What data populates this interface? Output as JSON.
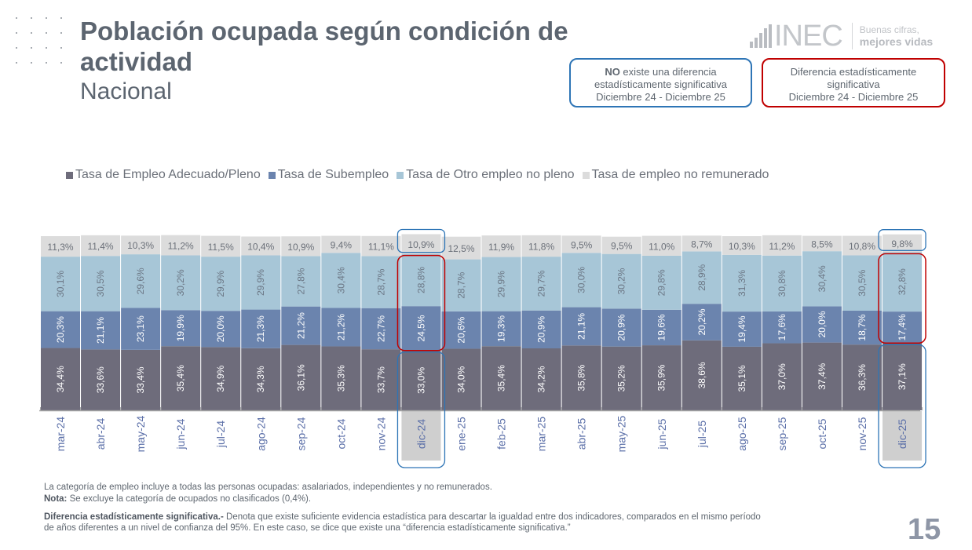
{
  "header": {
    "title": "Población ocupada según condición de actividad",
    "subtitle": "Nacional"
  },
  "logo": {
    "brand": "INEC",
    "slogan_line1": "Buenas cifras,",
    "slogan_line2": "mejores vidas"
  },
  "significance_boxes": {
    "no_difference": {
      "bold": "NO",
      "line1_rest": " existe una diferencia",
      "line2": "estadísticamente significativa",
      "line3": "Diciembre 24 - Diciembre 25",
      "color": "#2e75b6"
    },
    "difference": {
      "line1": "Diferencia estadísticamente",
      "line2": "significativa",
      "line3": "Diciembre 24 - Diciembre 25",
      "color": "#c00000"
    }
  },
  "chart_data": {
    "type": "bar",
    "stacked": true,
    "title": "Población ocupada según condición de actividad - Nacional",
    "xlabel": "",
    "ylabel": "",
    "ylim": [
      0,
      100
    ],
    "grid": false,
    "legend_position": "top",
    "categories": [
      "mar-24",
      "abr-24",
      "may-24",
      "jun-24",
      "jul-24",
      "ago-24",
      "sep-24",
      "oct-24",
      "nov-24",
      "dic-24",
      "ene-25",
      "feb-25",
      "mar-25",
      "abr-25",
      "may-25",
      "jun-25",
      "jul-25",
      "ago-25",
      "sep-25",
      "oct-25",
      "nov-25",
      "dic-25"
    ],
    "highlighted_categories": [
      "dic-24",
      "dic-25"
    ],
    "series": [
      {
        "name": "Tasa de Empleo Adecuado/Pleno",
        "color": "#6e6c7b",
        "label_color": "#ffffff",
        "values": [
          34.4,
          33.6,
          33.4,
          35.4,
          34.9,
          34.3,
          36.1,
          35.3,
          33.7,
          33.0,
          34.0,
          35.4,
          34.2,
          35.8,
          35.2,
          35.9,
          38.6,
          35.1,
          37.0,
          37.4,
          36.3,
          37.1
        ],
        "labels": [
          "34,4%",
          "33,6%",
          "33,4%",
          "35,4%",
          "34,9%",
          "34,3%",
          "36,1%",
          "35,3%",
          "33,7%",
          "33,0%",
          "34,0%",
          "35,4%",
          "34,2%",
          "35,8%",
          "35,2%",
          "35,9%",
          "38,6%",
          "35,1%",
          "37,0%",
          "37,4%",
          "36,3%",
          "37,1%"
        ],
        "significance": "no"
      },
      {
        "name": "Tasa de Subempleo",
        "color": "#6b84ae",
        "label_color": "#ffffff",
        "values": [
          20.3,
          21.1,
          23.1,
          19.9,
          20.0,
          21.3,
          21.2,
          21.2,
          22.7,
          24.5,
          20.6,
          19.3,
          20.9,
          21.1,
          20.9,
          19.6,
          20.2,
          19.4,
          17.6,
          20.0,
          18.7,
          17.4
        ],
        "labels": [
          "20,3%",
          "21,1%",
          "23,1%",
          "19,9%",
          "20,0%",
          "21,3%",
          "21,2%",
          "21,2%",
          "22,7%",
          "24,5%",
          "20,6%",
          "19,3%",
          "20,9%",
          "21,1%",
          "20,9%",
          "19,6%",
          "20,2%",
          "19,4%",
          "17,6%",
          "20,0%",
          "18,7%",
          "17,4%"
        ],
        "significance": "yes"
      },
      {
        "name": "Tasa de Otro empleo no pleno",
        "color": "#a7c6d7",
        "label_color": "#6b7684",
        "values": [
          30.1,
          30.5,
          29.6,
          30.2,
          29.9,
          29.9,
          27.8,
          30.4,
          28.7,
          28.8,
          28.7,
          29.9,
          29.7,
          30.0,
          30.2,
          29.8,
          28.9,
          31.3,
          30.8,
          30.4,
          30.5,
          32.8
        ],
        "labels": [
          "30,1%",
          "30,5%",
          "29,6%",
          "30,2%",
          "29,9%",
          "29,9%",
          "27,8%",
          "30,4%",
          "28,7%",
          "28,8%",
          "28,7%",
          "29,9%",
          "29,7%",
          "30,0%",
          "30,2%",
          "29,8%",
          "28,9%",
          "31,3%",
          "30,8%",
          "30,4%",
          "30,5%",
          "32,8%"
        ],
        "significance": "yes"
      },
      {
        "name": "Tasa de empleo no remunerado",
        "color": "#dcdcdc",
        "label_color": "#6b7079",
        "values": [
          11.3,
          11.4,
          10.3,
          11.2,
          11.5,
          10.4,
          10.9,
          9.4,
          11.1,
          10.9,
          12.5,
          11.9,
          11.8,
          9.5,
          9.5,
          11.0,
          8.7,
          10.3,
          11.2,
          8.5,
          10.8,
          9.8
        ],
        "labels": [
          "11,3%",
          "11,4%",
          "10,3%",
          "11,2%",
          "11,5%",
          "10,4%",
          "10,9%",
          "9,4%",
          "11,1%",
          "10,9%",
          "12,5%",
          "11,9%",
          "11,8%",
          "9,5%",
          "9,5%",
          "11,0%",
          "8,7%",
          "10,3%",
          "11,2%",
          "8,5%",
          "10,8%",
          "9,8%"
        ],
        "significance": "no"
      }
    ]
  },
  "footnotes": {
    "line1": "La categoría de empleo incluye a todas las personas ocupadas: asalariados, independientes y no remunerados.",
    "note_label": "Nota:",
    "note_text": " Se excluye la categoría de ocupados no clasificados (0,4%).",
    "def_label": "Diferencia estadísticamente significativa.-",
    "def_text_line1": " Denota que existe suficiente evidencia estadística para descartar la igualdad entre dos indicadores, comparados en el mismo período",
    "def_text_line2": "de años diferentes a un nivel de confianza del 95%. En este caso, se dice que existe una “diferencia estadísticamente significativa.”"
  },
  "page_number": "15"
}
